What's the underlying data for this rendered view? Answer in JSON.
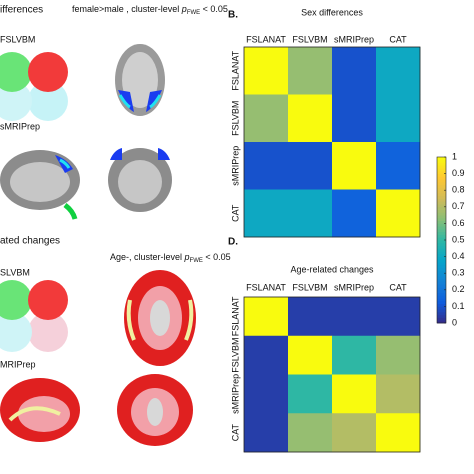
{
  "left_panel": {
    "top": {
      "heading": "ifferences",
      "caption_prefix": "female>male , cluster-level ",
      "p": "p",
      "sub": "FWE",
      "suffix": " < 0.05",
      "label1": "FSLVBM",
      "label2": "sMRIPrep"
    },
    "bottom": {
      "heading": "ated changes",
      "caption_prefix": "Age-, cluster-level ",
      "p": "p",
      "sub": "FWE",
      "suffix": " < 0.05",
      "label1": "SLVBM",
      "label2": "MRIPrep"
    }
  },
  "chart_data": [
    {
      "type": "heatmap",
      "panel": "B.",
      "title": "Sex differences",
      "x_labels": [
        "FSLANAT",
        "FSLVBM",
        "sMRIPrep",
        "CAT"
      ],
      "y_labels": [
        "FSLANAT",
        "FSLVBM",
        "sMRIPrep",
        "CAT"
      ],
      "values": [
        [
          1,
          0.65,
          0.1,
          0.4
        ],
        [
          0.65,
          1,
          0.1,
          0.4
        ],
        [
          0.1,
          0.1,
          1,
          0.15
        ],
        [
          0.4,
          0.4,
          0.15,
          1
        ]
      ]
    },
    {
      "type": "heatmap",
      "panel": "D.",
      "title": "Age-related changes",
      "x_labels": [
        "FSLANAT",
        "FSLVBM",
        "sMRIPrep",
        "CAT"
      ],
      "y_labels": [
        "FSLANAT",
        "FSLVBM",
        "sMRIPrep",
        "CAT"
      ],
      "values": [
        [
          1,
          0.05,
          0.05,
          0.05
        ],
        [
          0.05,
          1,
          0.5,
          0.65
        ],
        [
          0.05,
          0.5,
          1,
          0.7
        ],
        [
          0.05,
          0.65,
          0.7,
          1
        ]
      ]
    }
  ],
  "colorbar": {
    "lim": [
      0,
      1
    ],
    "ticks": [
      0,
      0.1,
      0.2,
      0.3,
      0.4,
      0.5,
      0.6,
      0.7,
      0.8,
      0.9,
      1
    ],
    "colormap": [
      "#352a87",
      "#0f5cdd",
      "#1481d6",
      "#06a4ca",
      "#2eb7a4",
      "#87bf77",
      "#d1bb59",
      "#fec832",
      "#f9fb0e"
    ]
  }
}
